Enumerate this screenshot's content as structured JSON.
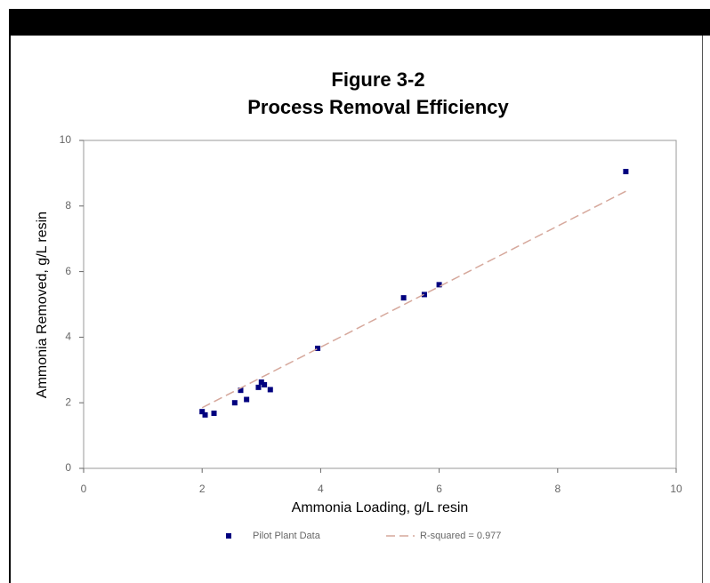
{
  "chart_data": {
    "type": "scatter",
    "title": "Figure 3-2",
    "subtitle": "Process Removal Efficiency",
    "x_label": "Ammonia Loading, g/L resin",
    "y_label": "Ammonia Removed, g/L resin",
    "xlim": [
      0,
      10
    ],
    "xticks": [
      0,
      2,
      4,
      6,
      8,
      10
    ],
    "ylim": [
      0,
      10
    ],
    "yticks": [
      0,
      2,
      4,
      6,
      8,
      10
    ],
    "legend": "bottom",
    "series": [
      {
        "name": "Pilot Plant Data",
        "color": "#00007f",
        "mode": "markers",
        "x": [
          2.0,
          2.05,
          2.2,
          2.55,
          2.65,
          2.75,
          2.95,
          3.0,
          3.05,
          3.15,
          3.95,
          5.4,
          5.75,
          6.0,
          9.15
        ],
        "values": [
          1.73,
          1.63,
          1.68,
          2.0,
          2.38,
          2.1,
          2.47,
          2.63,
          2.55,
          2.4,
          3.66,
          5.2,
          5.3,
          5.6,
          9.05
        ]
      },
      {
        "name": "R-squared = 0.977",
        "color": "#d6a89c",
        "mode": "line",
        "dash": true,
        "x": [
          2.0,
          9.15
        ],
        "values": [
          1.85,
          8.45
        ]
      }
    ]
  }
}
